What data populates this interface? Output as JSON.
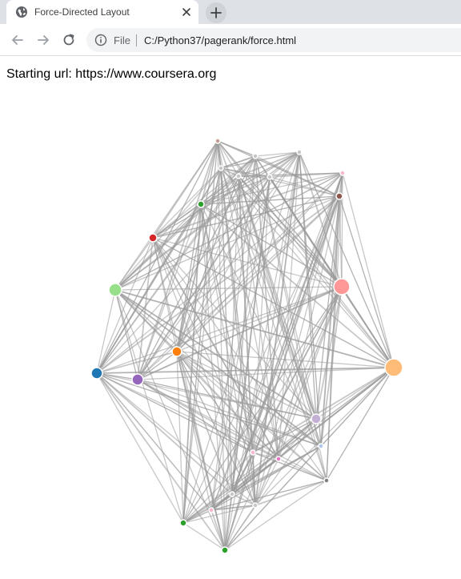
{
  "browser": {
    "tab_title": "Force-Directed Layout",
    "address_scheme": "File",
    "address_url": "C:/Python37/pagerank/force.html"
  },
  "page": {
    "starting_label": "Starting url: ",
    "starting_url": "https://www.coursera.org"
  },
  "graph": {
    "link_color": "#999999",
    "node_stroke": "#ffffff",
    "nodes": [
      {
        "id": 0,
        "color": "#1f77b4",
        "r": 7
      },
      {
        "id": 1,
        "color": "#ffbb78",
        "r": 11
      },
      {
        "id": 2,
        "color": "#ff9896",
        "r": 10
      },
      {
        "id": 3,
        "color": "#98df8a",
        "r": 8
      },
      {
        "id": 4,
        "color": "#9467bd",
        "r": 7
      },
      {
        "id": 5,
        "color": "#ff7f0e",
        "r": 6
      },
      {
        "id": 6,
        "color": "#d62728",
        "r": 5
      },
      {
        "id": 7,
        "color": "#2ca02c",
        "r": 4
      },
      {
        "id": 8,
        "color": "#c5b0d5",
        "r": 6
      },
      {
        "id": 9,
        "color": "#8c564b",
        "r": 4
      },
      {
        "id": 10,
        "color": "#c49c94",
        "r": 3
      },
      {
        "id": 11,
        "color": "#c7c7c7",
        "r": 3
      },
      {
        "id": 12,
        "color": "#c7c7c7",
        "r": 3
      },
      {
        "id": 13,
        "color": "#c7c7c7",
        "r": 3
      },
      {
        "id": 14,
        "color": "#f7b6d2",
        "r": 3
      },
      {
        "id": 15,
        "color": "#c7c7c7",
        "r": 3
      },
      {
        "id": 16,
        "color": "#c7c7c7",
        "r": 3
      },
      {
        "id": 17,
        "color": "#aec7e8",
        "r": 3
      },
      {
        "id": 18,
        "color": "#7f7f7f",
        "r": 3
      },
      {
        "id": 19,
        "color": "#f7b6d2",
        "r": 3
      },
      {
        "id": 20,
        "color": "#e377c2",
        "r": 3
      },
      {
        "id": 21,
        "color": "#c7c7c7",
        "r": 3
      },
      {
        "id": 22,
        "color": "#c7c7c7",
        "r": 3
      },
      {
        "id": 23,
        "color": "#f7b6d2",
        "r": 3
      },
      {
        "id": 24,
        "color": "#2ca02c",
        "r": 4
      },
      {
        "id": 25,
        "color": "#2ca02c",
        "r": 4
      }
    ]
  }
}
